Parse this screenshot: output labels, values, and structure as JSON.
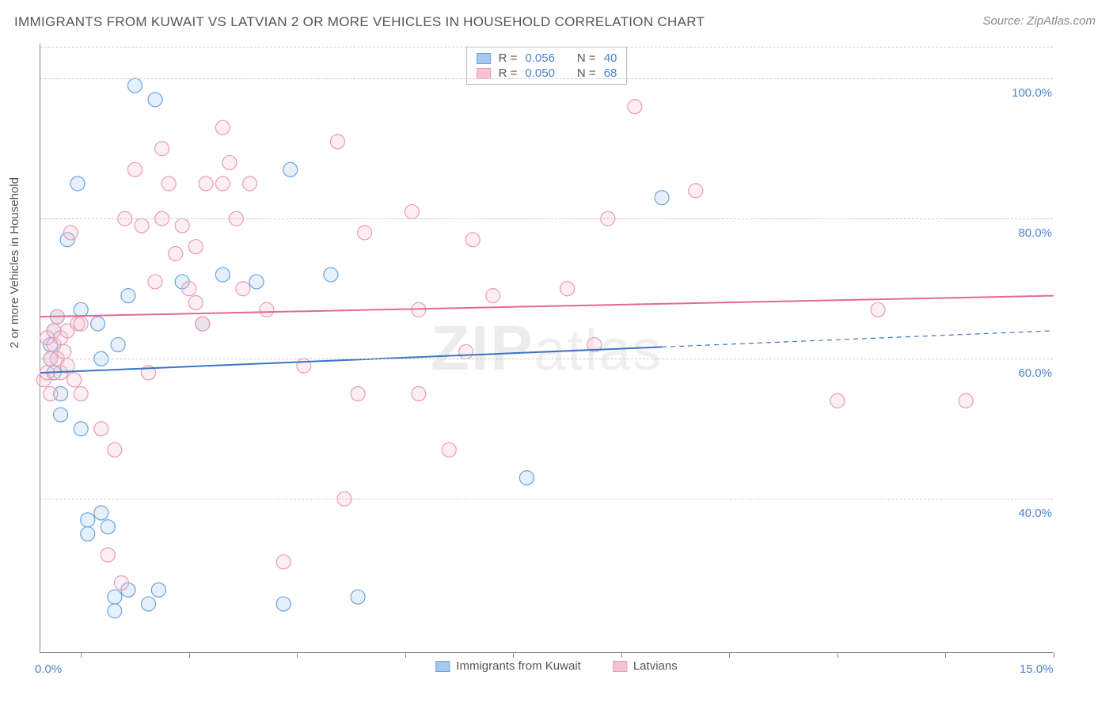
{
  "title": "IMMIGRANTS FROM KUWAIT VS LATVIAN 2 OR MORE VEHICLES IN HOUSEHOLD CORRELATION CHART",
  "source": "Source: ZipAtlas.com",
  "ylabel": "2 or more Vehicles in Household",
  "watermark": "ZIPatlas",
  "chart": {
    "type": "scatter",
    "xlim": [
      0,
      15
    ],
    "ylim": [
      18,
      105
    ],
    "x_ticks_labels": {
      "0": "0.0%",
      "15": "15.0%"
    },
    "x_tickmarks": [
      0.6,
      2.2,
      3.8,
      5.4,
      7.0,
      8.6,
      10.2,
      11.8,
      13.4,
      15.0
    ],
    "y_ticks": [
      40,
      60,
      80,
      100
    ],
    "y_ticks_labels": {
      "40": "40.0%",
      "60": "60.0%",
      "80": "80.0%",
      "100": "100.0%"
    },
    "grid_color": "#cccccc",
    "background_color": "#ffffff",
    "axis_color": "#888888",
    "tick_label_color": "#4f81d1",
    "tick_label_fontsize": 15,
    "title_fontsize": 17,
    "title_color": "#555555",
    "marker_radius": 9,
    "marker_stroke_width": 1.2,
    "marker_fill_opacity": 0.28,
    "line_width": 2,
    "series": [
      {
        "name": "Immigrants from Kuwait",
        "color_stroke": "#6aa3e0",
        "color_fill": "#a7c8ec",
        "line_color": "#3a76c4",
        "R": "0.056",
        "N": "40",
        "trend": {
          "x1": 0,
          "y1": 58,
          "x2": 15,
          "y2": 64,
          "solid_to_x": 9.2
        },
        "points": [
          [
            0.15,
            62
          ],
          [
            0.15,
            60
          ],
          [
            0.2,
            58
          ],
          [
            0.2,
            64
          ],
          [
            0.25,
            66
          ],
          [
            0.3,
            55
          ],
          [
            0.3,
            52
          ],
          [
            0.4,
            77
          ],
          [
            0.55,
            85
          ],
          [
            0.6,
            50
          ],
          [
            0.6,
            67
          ],
          [
            0.7,
            37
          ],
          [
            0.7,
            35
          ],
          [
            0.85,
            65
          ],
          [
            0.9,
            38
          ],
          [
            0.9,
            60
          ],
          [
            1.0,
            36
          ],
          [
            1.1,
            26
          ],
          [
            1.1,
            24
          ],
          [
            1.15,
            62
          ],
          [
            1.3,
            69
          ],
          [
            1.3,
            27
          ],
          [
            1.4,
            99
          ],
          [
            1.6,
            25
          ],
          [
            1.7,
            97
          ],
          [
            1.75,
            27
          ],
          [
            2.1,
            71
          ],
          [
            2.4,
            65
          ],
          [
            2.7,
            72
          ],
          [
            3.2,
            71
          ],
          [
            3.6,
            25
          ],
          [
            3.7,
            87
          ],
          [
            4.3,
            72
          ],
          [
            4.7,
            26
          ],
          [
            7.2,
            43
          ],
          [
            9.2,
            83
          ]
        ]
      },
      {
        "name": "Latvians",
        "color_stroke": "#e89cb3",
        "color_fill": "#f5c3d2",
        "line_color": "#e46a94",
        "R": "0.050",
        "N": "68",
        "trend": {
          "x1": 0,
          "y1": 66,
          "x2": 15,
          "y2": 69,
          "solid_to_x": 15
        },
        "points": [
          [
            0.05,
            57
          ],
          [
            0.1,
            58
          ],
          [
            0.1,
            63
          ],
          [
            0.15,
            55
          ],
          [
            0.15,
            60
          ],
          [
            0.2,
            62
          ],
          [
            0.2,
            64
          ],
          [
            0.25,
            66
          ],
          [
            0.25,
            60
          ],
          [
            0.3,
            58
          ],
          [
            0.3,
            63
          ],
          [
            0.35,
            61
          ],
          [
            0.4,
            64
          ],
          [
            0.4,
            59
          ],
          [
            0.45,
            78
          ],
          [
            0.5,
            57
          ],
          [
            0.55,
            65
          ],
          [
            0.6,
            65
          ],
          [
            0.6,
            55
          ],
          [
            0.9,
            50
          ],
          [
            1.0,
            32
          ],
          [
            1.1,
            47
          ],
          [
            1.2,
            28
          ],
          [
            1.25,
            80
          ],
          [
            1.5,
            79
          ],
          [
            1.4,
            87
          ],
          [
            1.6,
            58
          ],
          [
            1.7,
            71
          ],
          [
            1.8,
            90
          ],
          [
            1.8,
            80
          ],
          [
            1.9,
            85
          ],
          [
            2.0,
            75
          ],
          [
            2.1,
            79
          ],
          [
            2.2,
            70
          ],
          [
            2.3,
            76
          ],
          [
            2.3,
            68
          ],
          [
            2.4,
            65
          ],
          [
            2.45,
            85
          ],
          [
            2.7,
            93
          ],
          [
            2.7,
            85
          ],
          [
            2.8,
            88
          ],
          [
            2.9,
            80
          ],
          [
            3.0,
            70
          ],
          [
            3.1,
            85
          ],
          [
            3.35,
            67
          ],
          [
            3.6,
            31
          ],
          [
            3.9,
            59
          ],
          [
            4.4,
            91
          ],
          [
            4.5,
            40
          ],
          [
            4.7,
            55
          ],
          [
            4.8,
            78
          ],
          [
            5.5,
            81
          ],
          [
            5.6,
            55
          ],
          [
            5.6,
            67
          ],
          [
            6.05,
            47
          ],
          [
            6.3,
            61
          ],
          [
            6.4,
            77
          ],
          [
            6.7,
            69
          ],
          [
            7.8,
            70
          ],
          [
            8.2,
            62
          ],
          [
            8.4,
            80
          ],
          [
            8.8,
            96
          ],
          [
            9.7,
            84
          ],
          [
            11.8,
            54
          ],
          [
            12.4,
            67
          ],
          [
            13.7,
            54
          ]
        ]
      }
    ]
  },
  "legend_top": {
    "rows": [
      {
        "swatch_fill": "#a7c8ec",
        "swatch_stroke": "#6aa3e0",
        "R_label": "R =",
        "R": "0.056",
        "N_label": "N =",
        "N": "40"
      },
      {
        "swatch_fill": "#f5c3d2",
        "swatch_stroke": "#e89cb3",
        "R_label": "R =",
        "R": "0.050",
        "N_label": "N =",
        "N": "68"
      }
    ]
  },
  "legend_bottom": {
    "items": [
      {
        "swatch_fill": "#a7c8ec",
        "swatch_stroke": "#6aa3e0",
        "label": "Immigrants from Kuwait"
      },
      {
        "swatch_fill": "#f5c3d2",
        "swatch_stroke": "#e89cb3",
        "label": "Latvians"
      }
    ]
  }
}
